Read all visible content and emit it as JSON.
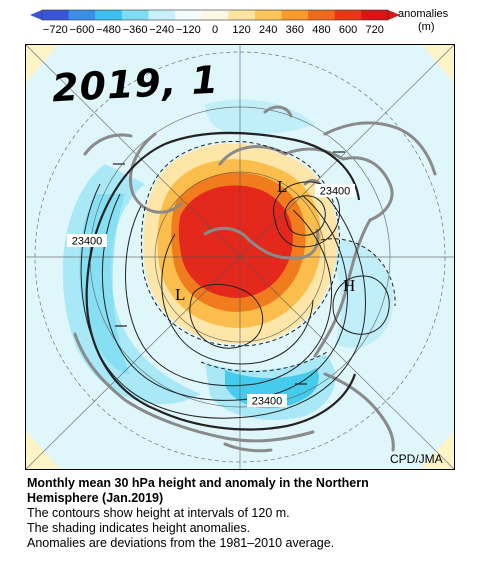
{
  "colorbar": {
    "ticks": [
      "−720",
      "−600",
      "−480",
      "−360",
      "−240",
      "−120",
      "0",
      "120",
      "240",
      "360",
      "480",
      "600",
      "720"
    ],
    "units_line1": "anomalies",
    "units_line2": "(m)",
    "colors": [
      "#3a56d8",
      "#3b8fe8",
      "#3cc0f0",
      "#7fdcf5",
      "#c7f1fb",
      "#f5fdff",
      "#fff7e6",
      "#fde4a0",
      "#fdc457",
      "#f99a2a",
      "#f06a1c",
      "#e53816",
      "#d81616"
    ]
  },
  "map": {
    "handwritten_label": "2019, 1",
    "contour_labels": [
      "23400",
      "23400",
      "23400"
    ],
    "high_label": "H",
    "low_labels": [
      "L",
      "L"
    ],
    "credit": "CPD/JMA",
    "palette": {
      "ocean": "#dff6fb",
      "neg_light": "#a8e8f7",
      "neg_mid": "#45cbeb",
      "pos_light": "#fde6a8",
      "pos_mid": "#fbbd4b",
      "pos_strong": "#f07c1e",
      "pos_max": "#e4281c",
      "land": "#909090"
    }
  },
  "caption": {
    "title_line1": "Monthly mean 30 hPa height and anomaly in the Northern",
    "title_line2": "Hemisphere (Jan.2019)",
    "line3": "The contours show height at intervals of 120 m.",
    "line4": "The shading indicates height anomalies.",
    "line5": "Anomalies are deviations from the 1981–2010 average."
  }
}
